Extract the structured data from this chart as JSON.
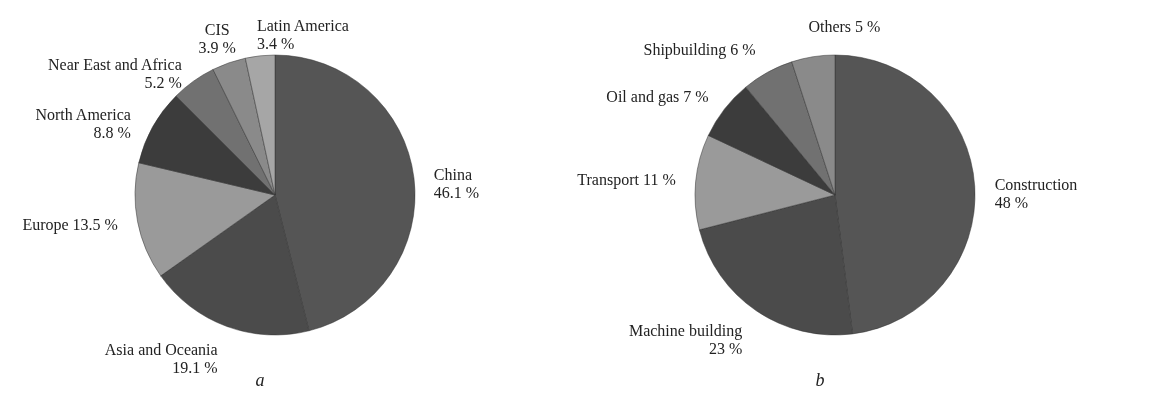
{
  "chart_data": [
    {
      "type": "pie",
      "categories": [
        "China",
        "Asia and Oceania",
        "Europe",
        "North America",
        "Near East and Africa",
        "CIS",
        "Latin America"
      ],
      "values": [
        46.1,
        19.1,
        13.5,
        8.8,
        5.2,
        3.9,
        3.4
      ],
      "value_labels": [
        "46.1 %",
        "19.1 %",
        "13.5 %",
        "8.8 %",
        "5.2 %",
        "3.9 %",
        "3.4 %"
      ],
      "colors": [
        "#555555",
        "#4b4b4b",
        "#9a9a9a",
        "#3c3c3c",
        "#717171",
        "#8a8a8a",
        "#a6a6a6"
      ],
      "annotations": [
        "a"
      ]
    },
    {
      "type": "pie",
      "categories": [
        "Construction",
        "Machine building",
        "Transport",
        "Oil and gas",
        "Shipbuilding",
        "Others"
      ],
      "values": [
        48,
        23,
        11,
        7,
        6,
        5
      ],
      "value_labels": [
        "48 %",
        "23 %",
        "11 %",
        "7 %",
        "6 %",
        "5 %"
      ],
      "colors": [
        "#555555",
        "#4b4b4b",
        "#9a9a9a",
        "#3c3c3c",
        "#717171",
        "#8a8a8a"
      ],
      "annotations": [
        "b"
      ]
    }
  ]
}
